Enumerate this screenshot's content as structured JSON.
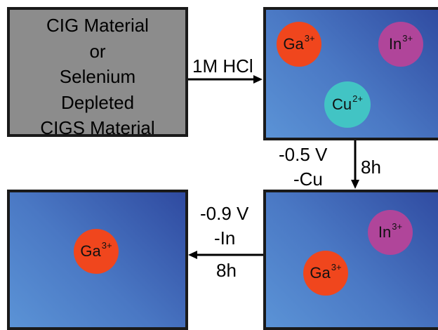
{
  "source_box": {
    "lines": [
      "CIG Material",
      "or",
      "Selenium",
      "Depleted",
      "CIGS Material"
    ]
  },
  "step1": {
    "label": "1M HCl"
  },
  "step2": {
    "voltage": "-0.5 V",
    "removed": "-Cu",
    "time": "8h"
  },
  "step3": {
    "voltage": "-0.9 V",
    "removed": "-In",
    "time": "8h"
  },
  "ions": {
    "ga": {
      "symbol": "Ga",
      "charge": "3+"
    },
    "in": {
      "symbol": "In",
      "charge": "3+"
    },
    "cu": {
      "symbol": "Cu",
      "charge": "2+"
    }
  },
  "colors": {
    "ga": "#f0461d",
    "in": "#b0459a",
    "cu": "#42c4c4",
    "solution_light": "#5b93d6",
    "solution_dark": "#2f4aa0",
    "source_box": "#8c8c8c"
  }
}
